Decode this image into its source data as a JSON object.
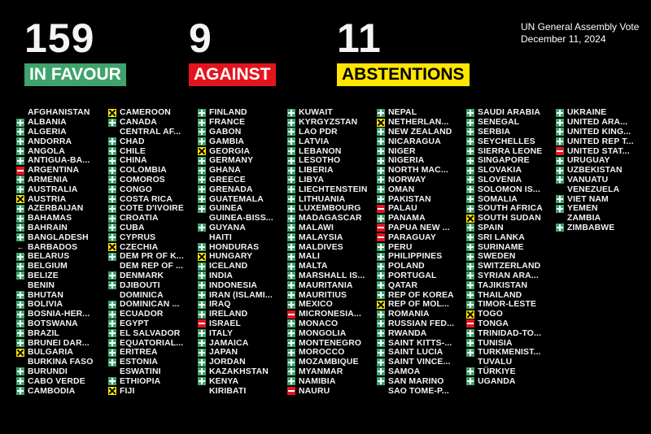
{
  "tally": {
    "favour": {
      "count": "159",
      "label": "IN FAVOUR",
      "color": "#3ea36d"
    },
    "against": {
      "count": "9",
      "label": "AGAINST",
      "color": "#e3141e"
    },
    "abstentions": {
      "count": "11",
      "label": "ABSTENTIONS",
      "color": "#ffe600"
    }
  },
  "caption": {
    "title": "UN General Assembly Vote",
    "date": "December 11, 2024"
  },
  "columns": [
    [
      [
        "AFGHANISTAN",
        "none"
      ],
      [
        "ALBANIA",
        "yes"
      ],
      [
        "ALGERIA",
        "yes"
      ],
      [
        "ANDORRA",
        "yes"
      ],
      [
        "ANGOLA",
        "yes"
      ],
      [
        "ANTIGUA-BA...",
        "yes"
      ],
      [
        "ARGENTINA",
        "no"
      ],
      [
        "ARMENIA",
        "yes"
      ],
      [
        "AUSTRALIA",
        "yes"
      ],
      [
        "AUSTRIA",
        "abs"
      ],
      [
        "AZERBAIJAN",
        "yes"
      ],
      [
        "BAHAMAS",
        "yes"
      ],
      [
        "BAHRAIN",
        "yes"
      ],
      [
        "BANGLADESH",
        "yes"
      ],
      [
        "BARBADOS",
        "arrow"
      ],
      [
        "BELARUS",
        "yes"
      ],
      [
        "BELGIUM",
        "yes"
      ],
      [
        "BELIZE",
        "yes"
      ],
      [
        "BENIN",
        "none"
      ],
      [
        "BHUTAN",
        "yes"
      ],
      [
        "BOLIVIA",
        "yes"
      ],
      [
        "BOSNIA-HER...",
        "yes"
      ],
      [
        "BOTSWANA",
        "yes"
      ],
      [
        "BRAZIL",
        "yes"
      ],
      [
        "BRUNEI DAR...",
        "yes"
      ],
      [
        "BULGARIA",
        "abs"
      ],
      [
        "BURKINA FASO",
        "none"
      ],
      [
        "BURUNDI",
        "yes"
      ],
      [
        "CABO VERDE",
        "yes"
      ],
      [
        "CAMBODIA",
        "yes"
      ]
    ],
    [
      [
        "CAMEROON",
        "abs"
      ],
      [
        "CANADA",
        "yes"
      ],
      [
        "CENTRAL AF...",
        "none"
      ],
      [
        "CHAD",
        "yes"
      ],
      [
        "CHILE",
        "yes"
      ],
      [
        "CHINA",
        "yes"
      ],
      [
        "COLOMBIA",
        "yes"
      ],
      [
        "COMOROS",
        "yes"
      ],
      [
        "CONGO",
        "yes"
      ],
      [
        "COSTA RICA",
        "yes"
      ],
      [
        "COTE D'IVOIRE",
        "yes"
      ],
      [
        "CROATIA",
        "yes"
      ],
      [
        "CUBA",
        "yes"
      ],
      [
        "CYPRUS",
        "yes"
      ],
      [
        "CZECHIA",
        "abs"
      ],
      [
        "DEM PR OF K...",
        "yes"
      ],
      [
        "DEM REP OF ...",
        "none"
      ],
      [
        "DENMARK",
        "yes"
      ],
      [
        "DJIBOUTI",
        "yes"
      ],
      [
        "DOMINICA",
        "none"
      ],
      [
        "DOMINICAN ...",
        "yes"
      ],
      [
        "ECUADOR",
        "yes"
      ],
      [
        "EGYPT",
        "yes"
      ],
      [
        "EL SALVADOR",
        "yes"
      ],
      [
        "EQUATORIAL...",
        "yes"
      ],
      [
        "ERITREA",
        "yes"
      ],
      [
        "ESTONIA",
        "yes"
      ],
      [
        "ESWATINI",
        "none"
      ],
      [
        "ETHIOPIA",
        "yes"
      ],
      [
        "FIJI",
        "abs"
      ]
    ],
    [
      [
        "FINLAND",
        "yes"
      ],
      [
        "FRANCE",
        "yes"
      ],
      [
        "GABON",
        "yes"
      ],
      [
        "GAMBIA",
        "yes"
      ],
      [
        "GEORGIA",
        "abs"
      ],
      [
        "GERMANY",
        "yes"
      ],
      [
        "GHANA",
        "yes"
      ],
      [
        "GREECE",
        "yes"
      ],
      [
        "GRENADA",
        "yes"
      ],
      [
        "GUATEMALA",
        "yes"
      ],
      [
        "GUINEA",
        "yes"
      ],
      [
        "GUINEA-BISS...",
        "none"
      ],
      [
        "GUYANA",
        "yes"
      ],
      [
        "HAITI",
        "none"
      ],
      [
        "HONDURAS",
        "yes"
      ],
      [
        "HUNGARY",
        "abs"
      ],
      [
        "ICELAND",
        "yes"
      ],
      [
        "INDIA",
        "yes"
      ],
      [
        "INDONESIA",
        "yes"
      ],
      [
        "IRAN (ISLAMI...",
        "yes"
      ],
      [
        "IRAQ",
        "yes"
      ],
      [
        "IRELAND",
        "yes"
      ],
      [
        "ISRAEL",
        "no"
      ],
      [
        "ITALY",
        "yes"
      ],
      [
        "JAMAICA",
        "yes"
      ],
      [
        "JAPAN",
        "yes"
      ],
      [
        "JORDAN",
        "yes"
      ],
      [
        "KAZAKHSTAN",
        "yes"
      ],
      [
        "KENYA",
        "yes"
      ],
      [
        "KIRIBATI",
        "none"
      ]
    ],
    [
      [
        "KUWAIT",
        "yes"
      ],
      [
        "KYRGYZSTAN",
        "yes"
      ],
      [
        "LAO PDR",
        "yes"
      ],
      [
        "LATVIA",
        "yes"
      ],
      [
        "LEBANON",
        "yes"
      ],
      [
        "LESOTHO",
        "yes"
      ],
      [
        "LIBERIA",
        "yes"
      ],
      [
        "LIBYA",
        "yes"
      ],
      [
        "LIECHTENSTEIN",
        "yes"
      ],
      [
        "LITHUANIA",
        "yes"
      ],
      [
        "LUXEMBOURG",
        "yes"
      ],
      [
        "MADAGASCAR",
        "yes"
      ],
      [
        "MALAWI",
        "yes"
      ],
      [
        "MALAYSIA",
        "yes"
      ],
      [
        "MALDIVES",
        "yes"
      ],
      [
        "MALI",
        "yes"
      ],
      [
        "MALTA",
        "yes"
      ],
      [
        "MARSHALL IS...",
        "yes"
      ],
      [
        "MAURITANIA",
        "yes"
      ],
      [
        "MAURITIUS",
        "yes"
      ],
      [
        "MEXICO",
        "yes"
      ],
      [
        "MICRONESIA...",
        "no"
      ],
      [
        "MONACO",
        "yes"
      ],
      [
        "MONGOLIA",
        "yes"
      ],
      [
        "MONTENEGRO",
        "yes"
      ],
      [
        "MOROCCO",
        "yes"
      ],
      [
        "MOZAMBIQUE",
        "yes"
      ],
      [
        "MYANMAR",
        "yes"
      ],
      [
        "NAMIBIA",
        "yes"
      ],
      [
        "NAURU",
        "no"
      ]
    ],
    [
      [
        "NEPAL",
        "yes"
      ],
      [
        "NETHERLAN...",
        "abs"
      ],
      [
        "NEW ZEALAND",
        "yes"
      ],
      [
        "NICARAGUA",
        "yes"
      ],
      [
        "NIGER",
        "yes"
      ],
      [
        "NIGERIA",
        "yes"
      ],
      [
        "NORTH MAC...",
        "yes"
      ],
      [
        "NORWAY",
        "yes"
      ],
      [
        "OMAN",
        "yes"
      ],
      [
        "PAKISTAN",
        "yes"
      ],
      [
        "PALAU",
        "no"
      ],
      [
        "PANAMA",
        "yes"
      ],
      [
        "PAPUA NEW ...",
        "no"
      ],
      [
        "PARAGUAY",
        "no"
      ],
      [
        "PERU",
        "yes"
      ],
      [
        "PHILIPPINES",
        "yes"
      ],
      [
        "POLAND",
        "yes"
      ],
      [
        "PORTUGAL",
        "yes"
      ],
      [
        "QATAR",
        "yes"
      ],
      [
        "REP OF KOREA",
        "yes"
      ],
      [
        "REP OF MOL...",
        "abs"
      ],
      [
        "ROMANIA",
        "yes"
      ],
      [
        "RUSSIAN FED...",
        "yes"
      ],
      [
        "RWANDA",
        "yes"
      ],
      [
        "SAINT KITTS-...",
        "yes"
      ],
      [
        "SAINT LUCIA",
        "yes"
      ],
      [
        "SAINT VINCE...",
        "yes"
      ],
      [
        "SAMOA",
        "yes"
      ],
      [
        "SAN MARINO",
        "yes"
      ],
      [
        "SAO TOME-P...",
        "none"
      ]
    ],
    [
      [
        "SAUDI ARABIA",
        "yes"
      ],
      [
        "SENEGAL",
        "yes"
      ],
      [
        "SERBIA",
        "yes"
      ],
      [
        "SEYCHELLES",
        "yes"
      ],
      [
        "SIERRA LEONE",
        "yes"
      ],
      [
        "SINGAPORE",
        "yes"
      ],
      [
        "SLOVAKIA",
        "yes"
      ],
      [
        "SLOVENIA",
        "yes"
      ],
      [
        "SOLOMON IS...",
        "yes"
      ],
      [
        "SOMALIA",
        "yes"
      ],
      [
        "SOUTH AFRICA",
        "yes"
      ],
      [
        "SOUTH SUDAN",
        "abs"
      ],
      [
        "SPAIN",
        "yes"
      ],
      [
        "SRI LANKA",
        "yes"
      ],
      [
        "SURINAME",
        "yes"
      ],
      [
        "SWEDEN",
        "yes"
      ],
      [
        "SWITZERLAND",
        "yes"
      ],
      [
        "SYRIAN ARA...",
        "yes"
      ],
      [
        "TAJIKISTAN",
        "yes"
      ],
      [
        "THAILAND",
        "yes"
      ],
      [
        "TIMOR-LESTE",
        "yes"
      ],
      [
        "TOGO",
        "abs"
      ],
      [
        "TONGA",
        "no"
      ],
      [
        "TRINIDAD-TO...",
        "yes"
      ],
      [
        "TUNISIA",
        "yes"
      ],
      [
        "TURKMENIST...",
        "yes"
      ],
      [
        "TUVALU",
        "none"
      ],
      [
        "TÜRKIYE",
        "yes"
      ],
      [
        "UGANDA",
        "yes"
      ]
    ],
    [
      [
        "UKRAINE",
        "yes"
      ],
      [
        "UNITED ARA...",
        "yes"
      ],
      [
        "UNITED KING...",
        "yes"
      ],
      [
        "UNITED REP T...",
        "yes"
      ],
      [
        "UNITED STAT...",
        "no"
      ],
      [
        "URUGUAY",
        "yes"
      ],
      [
        "UZBEKISTAN",
        "yes"
      ],
      [
        "VANUATU",
        "yes"
      ],
      [
        "VENEZUELA",
        "none"
      ],
      [
        "VIET NAM",
        "yes"
      ],
      [
        "YEMEN",
        "yes"
      ],
      [
        "ZAMBIA",
        "none"
      ],
      [
        "ZIMBABWE",
        "yes"
      ]
    ]
  ]
}
